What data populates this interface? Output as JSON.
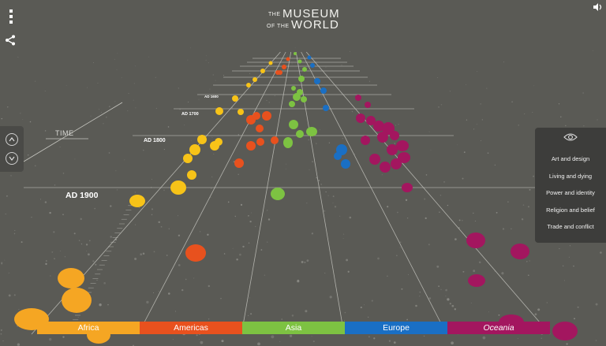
{
  "header": {
    "logo_line1": "THE",
    "logo_word1": "MUSEUM",
    "logo_line2": "OF THE",
    "logo_word2": "WORLD"
  },
  "icons": {
    "menu": "menu-dots-icon",
    "share": "share-icon",
    "sound": "speaker-icon",
    "eye": "eye-icon",
    "up": "chevron-up-icon",
    "down": "chevron-down-icon"
  },
  "timeline": {
    "axis_label": "TIME",
    "years": [
      "AD 1900",
      "AD 1800",
      "AD 1700",
      "AD 1600"
    ]
  },
  "filters": {
    "items": [
      "Art and design",
      "Living and dying",
      "Power and identity",
      "Religion and belief",
      "Trade and conflict"
    ]
  },
  "regions": [
    {
      "label": "Africa",
      "color": "#f5a623",
      "italic": false
    },
    {
      "label": "Americas",
      "color": "#e8511e",
      "italic": false
    },
    {
      "label": "Asia",
      "color": "#7dc242",
      "italic": false
    },
    {
      "label": "Europe",
      "color": "#1a6fc4",
      "italic": false
    },
    {
      "label": "Oceania",
      "color": "#a3165f",
      "italic": true
    }
  ],
  "colors": {
    "background": "#5a5a55",
    "grid": "#c8c8c2",
    "africa_light": "#f7c318"
  }
}
